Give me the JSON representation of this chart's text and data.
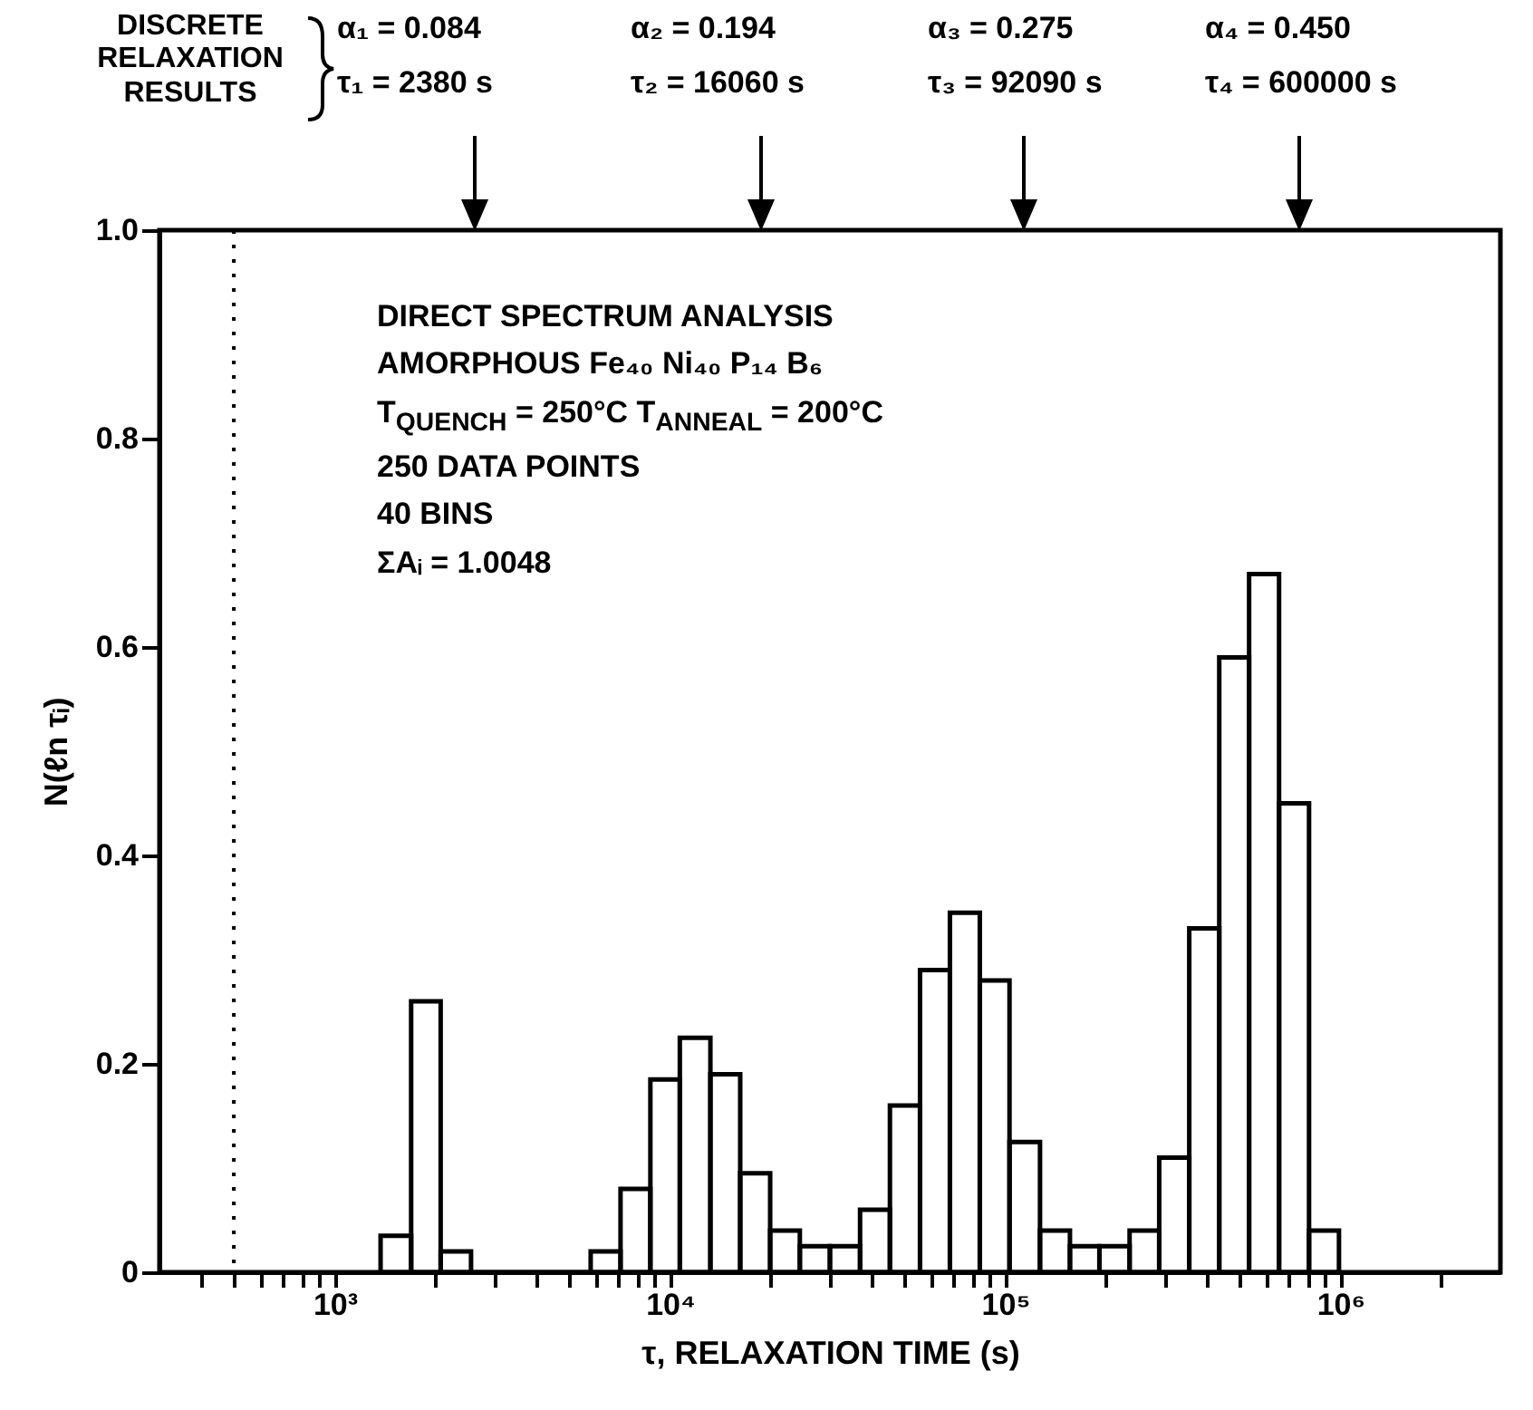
{
  "chart_data": {
    "type": "histogram",
    "xlabel": "τ, RELAXATION TIME (s)",
    "ylabel": "N(ℓn τᵢ)",
    "log": "x",
    "color": "#000000",
    "grid": false,
    "bins": [
      1370,
      1690,
      2070,
      2550,
      3130,
      3840,
      4720,
      5800,
      7120,
      8740,
      10700,
      13200,
      16200,
      19900,
      24400,
      30000,
      36900,
      45300,
      55700,
      68400,
      84000,
      103000,
      127000,
      156000,
      191000,
      235000,
      288000,
      354000,
      435000,
      534000,
      656000,
      806000,
      990000
    ],
    "values": [
      0.035,
      0.26,
      0.02,
      0,
      0,
      0,
      0,
      0.02,
      0.08,
      0.185,
      0.225,
      0.19,
      0.095,
      0.04,
      0.025,
      0.025,
      0.06,
      0.16,
      0.29,
      0.345,
      0.28,
      0.125,
      0.04,
      0.025,
      0.025,
      0.04,
      0.11,
      0.33,
      0.59,
      0.67,
      0.45,
      0.04
    ],
    "xlim": [
      300,
      3000000
    ],
    "xticks": [
      {
        "value": 400,
        "label": null
      },
      {
        "value": 500,
        "label": null
      },
      {
        "value": 600,
        "label": null
      },
      {
        "value": 700,
        "label": null
      },
      {
        "value": 800,
        "label": null
      },
      {
        "value": 900,
        "label": null
      },
      {
        "value": 1000,
        "label": "10³"
      },
      {
        "value": 2000,
        "label": null
      },
      {
        "value": 3000,
        "label": null
      },
      {
        "value": 4000,
        "label": null
      },
      {
        "value": 5000,
        "label": null
      },
      {
        "value": 6000,
        "label": null
      },
      {
        "value": 7000,
        "label": null
      },
      {
        "value": 8000,
        "label": null
      },
      {
        "value": 9000,
        "label": null
      },
      {
        "value": 10000,
        "label": "10⁴"
      },
      {
        "value": 20000,
        "label": null
      },
      {
        "value": 30000,
        "label": null
      },
      {
        "value": 40000,
        "label": null
      },
      {
        "value": 50000,
        "label": null
      },
      {
        "value": 60000,
        "label": null
      },
      {
        "value": 70000,
        "label": null
      },
      {
        "value": 80000,
        "label": null
      },
      {
        "value": 90000,
        "label": null
      },
      {
        "value": 100000,
        "label": "10⁵"
      },
      {
        "value": 200000,
        "label": null
      },
      {
        "value": 300000,
        "label": null
      },
      {
        "value": 400000,
        "label": null
      },
      {
        "value": 500000,
        "label": null
      },
      {
        "value": 600000,
        "label": null
      },
      {
        "value": 700000,
        "label": null
      },
      {
        "value": 800000,
        "label": null
      },
      {
        "value": 900000,
        "label": null
      },
      {
        "value": 1000000,
        "label": "10⁶"
      },
      {
        "value": 2000000,
        "label": null
      }
    ],
    "ylim": [
      0,
      1
    ],
    "yticks": [
      0,
      0.2,
      0.4,
      0.6,
      0.8,
      {
        "value": 1,
        "label": "1.0"
      }
    ],
    "ref_lines": [
      {
        "axis": "x",
        "value": 500,
        "line_style": "dotted"
      }
    ],
    "annotations": [
      "DISCRETE RELAXATION RESULTS",
      "α₁ = 0.084",
      "τ₁ = 2380 s",
      "α₂ = 0.194",
      "τ₂ = 16060 s",
      "α₃ = 0.275",
      "τ₃ = 92090 s",
      "α₄ = 0.450",
      "τ₄ = 600000 s",
      "DIRECT SPECTRUM ANALYSIS",
      "AMORPHOUS Fe₄₀ Ni₄₀ P₁₄ B₆",
      "T$_{QUENCH}$ = 250°C T$_{ANNEAL}$ = 200°C",
      "250 DATA POINTS",
      "40 BINS",
      "ΣAᵢ = 1.0048"
    ]
  }
}
